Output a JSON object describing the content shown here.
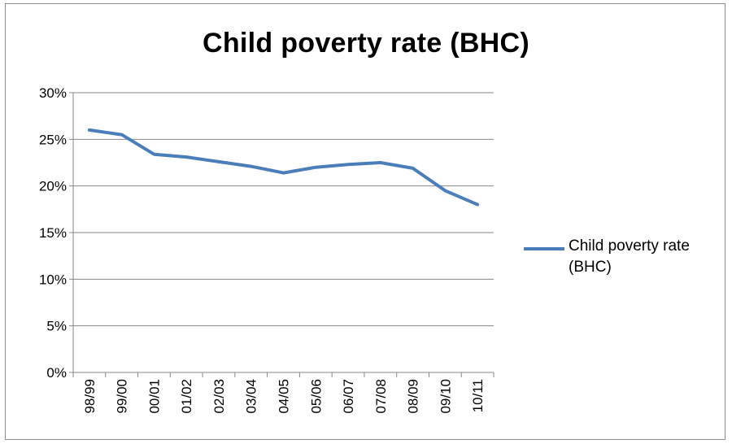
{
  "chart_data": {
    "type": "line",
    "title": "Child poverty rate (BHC)",
    "xlabel": "",
    "ylabel": "",
    "categories": [
      "98/99",
      "99/00",
      "00/01",
      "01/02",
      "02/03",
      "03/04",
      "04/05",
      "05/06",
      "06/07",
      "07/08",
      "08/09",
      "09/10",
      "10/11"
    ],
    "series": [
      {
        "name": "Child poverty rate (BHC)",
        "values": [
          26.0,
          25.5,
          23.4,
          23.1,
          22.6,
          22.1,
          21.4,
          22.0,
          22.3,
          22.5,
          21.9,
          19.5,
          18.0
        ],
        "color": "#4a7ebb"
      }
    ],
    "ylim": [
      0,
      30
    ],
    "yticks": [
      0,
      5,
      10,
      15,
      20,
      25,
      30
    ],
    "ytick_labels": [
      "0%",
      "5%",
      "10%",
      "15%",
      "20%",
      "25%",
      "30%"
    ],
    "grid": true,
    "legend_position": "right"
  }
}
